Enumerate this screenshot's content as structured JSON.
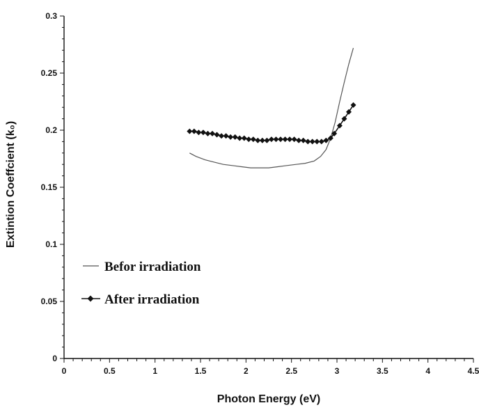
{
  "chart_data": {
    "type": "line",
    "title": "",
    "xlabel": "Photon Energy (eV)",
    "ylabel": "Extintion Coeffcient (k₀)",
    "xlim": [
      0,
      4.5
    ],
    "ylim": [
      0,
      0.3
    ],
    "x_ticks": [
      "0",
      "0.5",
      "1",
      "1.5",
      "2",
      "2.5",
      "3",
      "3.5",
      "4",
      "4.5"
    ],
    "y_ticks": [
      "0",
      "0.05",
      "0.1",
      "0.15",
      "0.2",
      "0.25",
      "0.3"
    ],
    "x_tick_values": [
      0,
      0.5,
      1,
      1.5,
      2,
      2.5,
      3,
      3.5,
      4,
      4.5
    ],
    "y_tick_values": [
      0,
      0.05,
      0.1,
      0.15,
      0.2,
      0.25,
      0.3
    ],
    "grid": false,
    "legend_position": "bottom-left",
    "series": [
      {
        "name": "Befor irradiation",
        "marker": "none",
        "color": "#555555",
        "points": [
          [
            1.38,
            0.18
          ],
          [
            1.45,
            0.177
          ],
          [
            1.55,
            0.174
          ],
          [
            1.65,
            0.172
          ],
          [
            1.75,
            0.17
          ],
          [
            1.85,
            0.169
          ],
          [
            1.95,
            0.168
          ],
          [
            2.05,
            0.167
          ],
          [
            2.15,
            0.167
          ],
          [
            2.25,
            0.167
          ],
          [
            2.35,
            0.168
          ],
          [
            2.45,
            0.169
          ],
          [
            2.55,
            0.17
          ],
          [
            2.65,
            0.171
          ],
          [
            2.75,
            0.173
          ],
          [
            2.82,
            0.177
          ],
          [
            2.88,
            0.183
          ],
          [
            2.93,
            0.193
          ],
          [
            2.98,
            0.207
          ],
          [
            3.03,
            0.225
          ],
          [
            3.08,
            0.242
          ],
          [
            3.13,
            0.258
          ],
          [
            3.18,
            0.272
          ]
        ]
      },
      {
        "name": "After irradiation",
        "marker": "diamond",
        "color": "#111111",
        "points": [
          [
            1.38,
            0.199
          ],
          [
            1.43,
            0.199
          ],
          [
            1.48,
            0.198
          ],
          [
            1.53,
            0.198
          ],
          [
            1.58,
            0.197
          ],
          [
            1.63,
            0.197
          ],
          [
            1.68,
            0.196
          ],
          [
            1.73,
            0.195
          ],
          [
            1.78,
            0.195
          ],
          [
            1.83,
            0.194
          ],
          [
            1.88,
            0.194
          ],
          [
            1.93,
            0.193
          ],
          [
            1.98,
            0.193
          ],
          [
            2.03,
            0.192
          ],
          [
            2.08,
            0.192
          ],
          [
            2.13,
            0.191
          ],
          [
            2.18,
            0.191
          ],
          [
            2.23,
            0.191
          ],
          [
            2.28,
            0.192
          ],
          [
            2.33,
            0.192
          ],
          [
            2.38,
            0.192
          ],
          [
            2.43,
            0.192
          ],
          [
            2.48,
            0.192
          ],
          [
            2.53,
            0.192
          ],
          [
            2.58,
            0.191
          ],
          [
            2.63,
            0.191
          ],
          [
            2.68,
            0.19
          ],
          [
            2.73,
            0.19
          ],
          [
            2.78,
            0.19
          ],
          [
            2.83,
            0.19
          ],
          [
            2.88,
            0.191
          ],
          [
            2.93,
            0.193
          ],
          [
            2.97,
            0.197
          ],
          [
            3.03,
            0.204
          ],
          [
            3.08,
            0.21
          ],
          [
            3.13,
            0.216
          ],
          [
            3.18,
            0.222
          ]
        ]
      }
    ]
  }
}
